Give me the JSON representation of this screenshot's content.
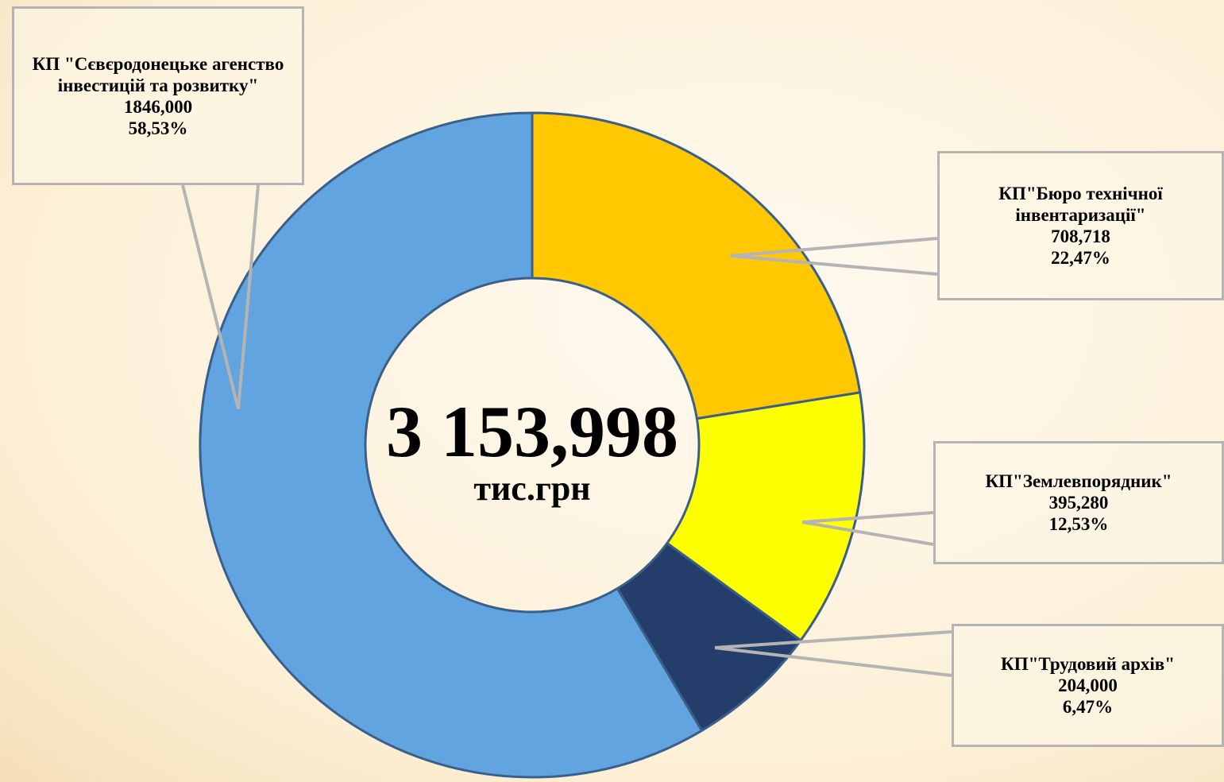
{
  "chart_data": {
    "type": "donut",
    "categories": [
      "КП\"Бюро технічної інвентаризації\"",
      "КП\"Землевпорядник\"",
      "КП\"Трудовий архів\"",
      "КП \"Сєвєродонецьке агенство інвестицій та розвитку\""
    ],
    "values": [
      708.718,
      395.28,
      204,
      1846
    ],
    "value_labels": [
      "708,718",
      "395,280",
      "204,000",
      "1846,000"
    ],
    "percentages": [
      22.47,
      12.53,
      6.47,
      58.53
    ],
    "percentage_labels": [
      "22,47%",
      "12,53%",
      "6,47%",
      "58,53%"
    ],
    "colors": [
      "#ffc800",
      "#ffff00",
      "#253d6a",
      "#62a4e0"
    ],
    "center_total": "3 153,998",
    "center_unit": "тис.грн"
  }
}
